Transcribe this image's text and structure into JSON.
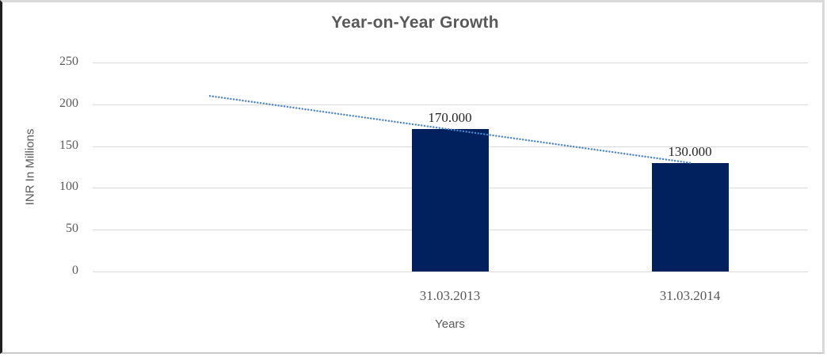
{
  "chart_data": {
    "type": "bar",
    "title": "Year-on-Year Growth",
    "xlabel": "Years",
    "ylabel": "INR In Millions",
    "categories": [
      "31.03.2013",
      "31.03.2014"
    ],
    "values": [
      170,
      130
    ],
    "value_labels": [
      "170.000",
      "130.000"
    ],
    "yticks": [
      0,
      50,
      100,
      150,
      200,
      250
    ],
    "ylim": [
      0,
      250
    ],
    "grid": "horizontal",
    "legend": "none",
    "trendline": {
      "style": "dotted-linear",
      "start": {
        "category_offset": -1,
        "value": 210
      },
      "end": {
        "category_offset": 1,
        "value": 130
      }
    },
    "colors": {
      "bar": "#00215E",
      "trendline": "#4A86C9",
      "gridline": "#D9D9D9",
      "title_text": "#595959",
      "axis_text": "#595959",
      "value_label_text": "#262626"
    }
  }
}
